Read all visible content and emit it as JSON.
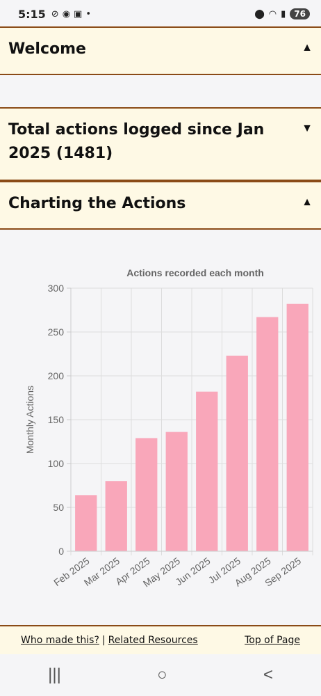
{
  "status": {
    "time": "5:15",
    "battery": "76"
  },
  "sections": {
    "welcome": {
      "title": "Welcome",
      "arrow": "▲"
    },
    "total": {
      "title": "Total actions logged since Jan 2025 (1481)",
      "arrow": "▼"
    },
    "charting": {
      "title": "Charting the Actions",
      "arrow": "▲"
    }
  },
  "chart_data": {
    "type": "bar",
    "title": "Actions recorded each month",
    "ylabel": "Monthly Actions",
    "xlabel": "",
    "categories": [
      "Feb 2025",
      "Mar 2025",
      "Apr 2025",
      "May 2025",
      "Jun 2025",
      "Jul 2025",
      "Aug 2025",
      "Sep 2025"
    ],
    "values": [
      64,
      80,
      129,
      136,
      182,
      223,
      267,
      282
    ],
    "ylim": [
      0,
      300
    ],
    "yticks": [
      0,
      50,
      100,
      150,
      200,
      250,
      300
    ],
    "bar_color": "#f9a7ba",
    "grid": true
  },
  "footer": {
    "who": "Who made this?",
    "sep": "|",
    "related": "Related Resources",
    "top": "Top of Page"
  },
  "navbar": {
    "recent": "|||",
    "home": "○",
    "back": "<"
  }
}
